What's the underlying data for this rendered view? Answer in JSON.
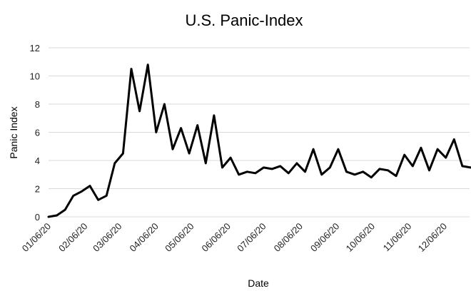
{
  "chart_data": {
    "type": "line",
    "title": "U.S. Panic-Index",
    "xlabel": "Date",
    "ylabel": "Panic Index",
    "ylim": [
      0,
      12
    ],
    "yticks": [
      0,
      2,
      4,
      6,
      8,
      10,
      12
    ],
    "xtick_labels": [
      "01/06/20",
      "02/06/20",
      "03/06/20",
      "04/06/20",
      "05/06/20",
      "06/06/20",
      "07/06/20",
      "08/06/20",
      "09/06/20",
      "10/06/20",
      "11/06/20",
      "12/06/20"
    ],
    "grid": "horizontal",
    "legend": "none",
    "color": "#000000",
    "series": [
      {
        "x": [
          "01/06/20",
          "01/13/20",
          "01/20/20",
          "01/27/20",
          "02/03/20",
          "02/10/20",
          "02/17/20",
          "02/24/20",
          "03/02/20",
          "03/09/20",
          "03/16/20",
          "03/23/20",
          "03/30/20",
          "04/06/20",
          "04/13/20",
          "04/20/20",
          "04/27/20",
          "05/04/20",
          "05/11/20",
          "05/18/20",
          "05/25/20",
          "06/01/20",
          "06/08/20",
          "06/15/20",
          "06/22/20",
          "06/29/20",
          "07/06/20",
          "07/13/20",
          "07/20/20",
          "07/27/20",
          "08/03/20",
          "08/10/20",
          "08/17/20",
          "08/24/20",
          "08/31/20",
          "09/07/20",
          "09/14/20",
          "09/21/20",
          "09/28/20",
          "10/05/20",
          "10/12/20",
          "10/19/20",
          "10/26/20",
          "11/02/20",
          "11/09/20",
          "11/16/20",
          "11/23/20",
          "11/30/20",
          "12/07/20",
          "12/14/20",
          "12/21/20",
          "12/28/20"
        ],
        "values": [
          0.0,
          0.1,
          0.5,
          1.5,
          1.8,
          2.2,
          1.2,
          1.5,
          3.8,
          4.5,
          10.5,
          7.5,
          10.8,
          6.0,
          8.0,
          4.8,
          6.3,
          4.5,
          6.5,
          3.8,
          7.2,
          3.5,
          4.2,
          3.0,
          3.2,
          3.1,
          3.5,
          3.4,
          3.6,
          3.1,
          3.8,
          3.2,
          4.8,
          3.0,
          3.5,
          4.8,
          3.2,
          3.0,
          3.2,
          2.8,
          3.4,
          3.3,
          2.9,
          4.4,
          3.6,
          4.9,
          3.3,
          4.8,
          4.2,
          5.5,
          3.6,
          3.5
        ]
      }
    ]
  }
}
